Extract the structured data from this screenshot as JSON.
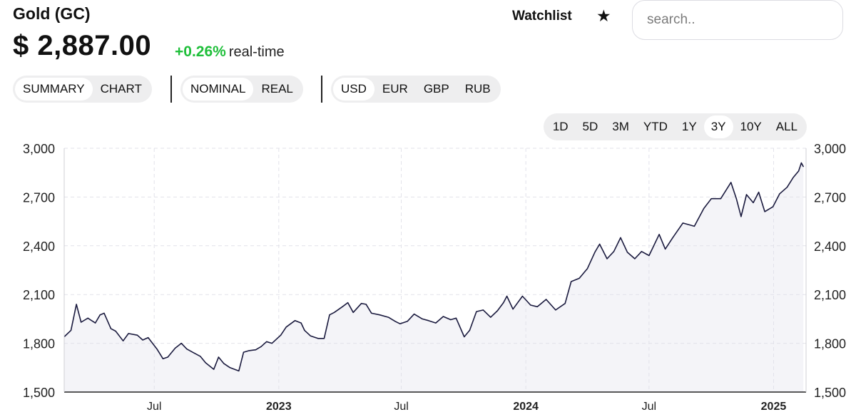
{
  "header": {
    "title": "Gold (GC)",
    "price": "$ 2,887.00",
    "change": "+0.26%",
    "realtime": "real-time",
    "watchlist_label": "Watchlist",
    "star_icon": "star-icon",
    "search_placeholder": "search..",
    "change_color": "#1fbf3a"
  },
  "view_tabs": {
    "items": [
      "SUMMARY",
      "CHART"
    ],
    "selected": "SUMMARY"
  },
  "mode_tabs": {
    "items": [
      "NOMINAL",
      "REAL"
    ],
    "selected": "NOMINAL"
  },
  "currency_tabs": {
    "items": [
      "USD",
      "EUR",
      "GBP",
      "RUB"
    ],
    "selected": "USD"
  },
  "range_tabs": {
    "items": [
      "1D",
      "5D",
      "3M",
      "YTD",
      "1Y",
      "3Y",
      "10Y",
      "ALL"
    ],
    "selected": "3Y"
  },
  "chart_data": {
    "type": "area",
    "title": "",
    "xlabel": "",
    "ylabel": "",
    "x_ticks": [
      {
        "label": "Jul",
        "date": "2022-07-01",
        "bold": false
      },
      {
        "label": "2023",
        "date": "2023-01-01",
        "bold": true
      },
      {
        "label": "Jul",
        "date": "2023-07-01",
        "bold": false
      },
      {
        "label": "2024",
        "date": "2024-01-01",
        "bold": true
      },
      {
        "label": "Jul",
        "date": "2024-07-01",
        "bold": false
      },
      {
        "label": "2025",
        "date": "2025-01-01",
        "bold": true
      }
    ],
    "y_ticks": [
      "3,000",
      "2,700",
      "2,400",
      "2,100",
      "1,800",
      "1,500"
    ],
    "ylim": [
      1500,
      3000
    ],
    "xlim": [
      "2022-02-18",
      "2025-02-18"
    ],
    "grid": true,
    "line_color": "#1a1a3e",
    "fill_color": "#f4f4f8",
    "series": [
      {
        "values": [
          [
            "2022-02-18",
            1840
          ],
          [
            "2022-02-28",
            1880
          ],
          [
            "2022-03-08",
            2040
          ],
          [
            "2022-03-15",
            1930
          ],
          [
            "2022-03-25",
            1955
          ],
          [
            "2022-04-05",
            1925
          ],
          [
            "2022-04-12",
            1975
          ],
          [
            "2022-04-18",
            1985
          ],
          [
            "2022-04-28",
            1890
          ],
          [
            "2022-05-05",
            1875
          ],
          [
            "2022-05-16",
            1815
          ],
          [
            "2022-05-24",
            1860
          ],
          [
            "2022-06-06",
            1850
          ],
          [
            "2022-06-14",
            1820
          ],
          [
            "2022-06-22",
            1835
          ],
          [
            "2022-07-05",
            1765
          ],
          [
            "2022-07-14",
            1705
          ],
          [
            "2022-07-21",
            1715
          ],
          [
            "2022-08-01",
            1770
          ],
          [
            "2022-08-10",
            1800
          ],
          [
            "2022-08-18",
            1765
          ],
          [
            "2022-08-29",
            1740
          ],
          [
            "2022-09-07",
            1720
          ],
          [
            "2022-09-15",
            1680
          ],
          [
            "2022-09-27",
            1640
          ],
          [
            "2022-10-04",
            1715
          ],
          [
            "2022-10-12",
            1675
          ],
          [
            "2022-10-21",
            1650
          ],
          [
            "2022-11-03",
            1630
          ],
          [
            "2022-11-10",
            1745
          ],
          [
            "2022-11-18",
            1755
          ],
          [
            "2022-11-28",
            1760
          ],
          [
            "2022-12-06",
            1780
          ],
          [
            "2022-12-14",
            1810
          ],
          [
            "2022-12-22",
            1800
          ],
          [
            "2023-01-04",
            1850
          ],
          [
            "2023-01-12",
            1900
          ],
          [
            "2023-01-25",
            1940
          ],
          [
            "2023-02-03",
            1925
          ],
          [
            "2023-02-08",
            1880
          ],
          [
            "2023-02-17",
            1845
          ],
          [
            "2023-02-28",
            1830
          ],
          [
            "2023-03-09",
            1830
          ],
          [
            "2023-03-17",
            1975
          ],
          [
            "2023-03-24",
            1990
          ],
          [
            "2023-04-05",
            2025
          ],
          [
            "2023-04-13",
            2050
          ],
          [
            "2023-04-21",
            1990
          ],
          [
            "2023-05-03",
            2045
          ],
          [
            "2023-05-10",
            2040
          ],
          [
            "2023-05-18",
            1985
          ],
          [
            "2023-05-30",
            1975
          ],
          [
            "2023-06-12",
            1960
          ],
          [
            "2023-06-22",
            1935
          ],
          [
            "2023-06-29",
            1920
          ],
          [
            "2023-07-10",
            1935
          ],
          [
            "2023-07-20",
            1980
          ],
          [
            "2023-08-01",
            1950
          ],
          [
            "2023-08-10",
            1940
          ],
          [
            "2023-08-21",
            1925
          ],
          [
            "2023-09-01",
            1965
          ],
          [
            "2023-09-12",
            1945
          ],
          [
            "2023-09-20",
            1955
          ],
          [
            "2023-10-02",
            1840
          ],
          [
            "2023-10-10",
            1880
          ],
          [
            "2023-10-20",
            1995
          ],
          [
            "2023-10-30",
            2005
          ],
          [
            "2023-11-10",
            1960
          ],
          [
            "2023-11-20",
            2000
          ],
          [
            "2023-11-29",
            2050
          ],
          [
            "2023-12-04",
            2090
          ],
          [
            "2023-12-13",
            2010
          ],
          [
            "2023-12-27",
            2090
          ],
          [
            "2024-01-08",
            2035
          ],
          [
            "2024-01-18",
            2025
          ],
          [
            "2024-01-31",
            2070
          ],
          [
            "2024-02-14",
            2005
          ],
          [
            "2024-02-28",
            2045
          ],
          [
            "2024-03-08",
            2180
          ],
          [
            "2024-03-20",
            2200
          ],
          [
            "2024-04-01",
            2260
          ],
          [
            "2024-04-12",
            2360
          ],
          [
            "2024-04-19",
            2410
          ],
          [
            "2024-04-30",
            2320
          ],
          [
            "2024-05-10",
            2365
          ],
          [
            "2024-05-20",
            2450
          ],
          [
            "2024-05-30",
            2360
          ],
          [
            "2024-06-10",
            2320
          ],
          [
            "2024-06-20",
            2365
          ],
          [
            "2024-07-01",
            2340
          ],
          [
            "2024-07-16",
            2470
          ],
          [
            "2024-07-25",
            2380
          ],
          [
            "2024-08-05",
            2450
          ],
          [
            "2024-08-20",
            2540
          ],
          [
            "2024-09-06",
            2520
          ],
          [
            "2024-09-20",
            2630
          ],
          [
            "2024-10-01",
            2690
          ],
          [
            "2024-10-15",
            2690
          ],
          [
            "2024-10-30",
            2790
          ],
          [
            "2024-11-07",
            2690
          ],
          [
            "2024-11-14",
            2580
          ],
          [
            "2024-11-22",
            2715
          ],
          [
            "2024-12-02",
            2665
          ],
          [
            "2024-12-10",
            2730
          ],
          [
            "2024-12-19",
            2610
          ],
          [
            "2024-12-31",
            2640
          ],
          [
            "2025-01-10",
            2720
          ],
          [
            "2025-01-21",
            2760
          ],
          [
            "2025-01-30",
            2820
          ],
          [
            "2025-02-07",
            2860
          ],
          [
            "2025-02-11",
            2910
          ],
          [
            "2025-02-14",
            2887
          ]
        ]
      }
    ]
  }
}
